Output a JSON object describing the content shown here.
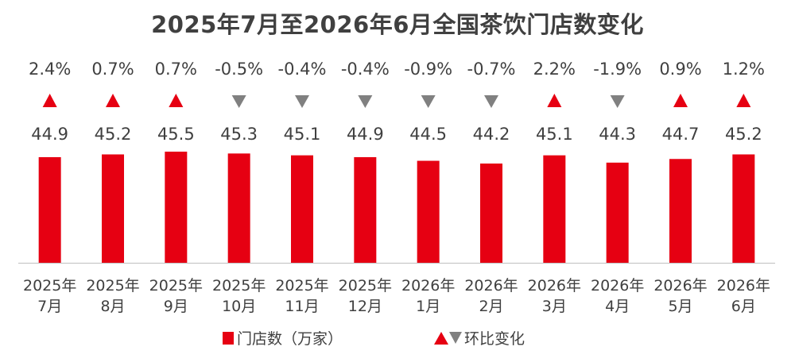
{
  "chart_data": {
    "type": "bar",
    "title": "2025年7月至2026年6月全国茶饮门店数变化",
    "categories": [
      [
        "2025年",
        "7月"
      ],
      [
        "2025年",
        "8月"
      ],
      [
        "2025年",
        "9月"
      ],
      [
        "2025年",
        "10月"
      ],
      [
        "2025年",
        "11月"
      ],
      [
        "2025年",
        "12月"
      ],
      [
        "2026年",
        "1月"
      ],
      [
        "2026年",
        "2月"
      ],
      [
        "2026年",
        "3月"
      ],
      [
        "2026年",
        "4月"
      ],
      [
        "2026年",
        "5月"
      ],
      [
        "2026年",
        "6月"
      ]
    ],
    "series": [
      {
        "name": "门店数（万家）",
        "values": [
          44.9,
          45.2,
          45.5,
          45.3,
          45.1,
          44.9,
          44.5,
          44.2,
          45.1,
          44.3,
          44.7,
          45.2
        ],
        "labels": [
          "44.9",
          "45.2",
          "45.5",
          "45.3",
          "45.1",
          "44.9",
          "44.5",
          "44.2",
          "45.1",
          "44.3",
          "44.7",
          "45.2"
        ],
        "color": "#e60012"
      },
      {
        "name": "环比变化",
        "values": [
          2.4,
          0.7,
          0.7,
          -0.5,
          -0.4,
          -0.4,
          -0.9,
          -0.7,
          2.2,
          -1.9,
          0.9,
          1.2
        ],
        "labels": [
          "2.4%",
          "0.7%",
          "0.7%",
          "-0.5%",
          "-0.4%",
          "-0.4%",
          "-0.9%",
          "-0.7%",
          "2.2%",
          "-1.9%",
          "0.9%",
          "1.2%"
        ],
        "up_color": "#e60012",
        "down_color": "#808080"
      }
    ],
    "legend": {
      "position": "bottom",
      "bar_label": "门店数（万家）",
      "marker_label": "环比变化"
    },
    "grid": false
  }
}
